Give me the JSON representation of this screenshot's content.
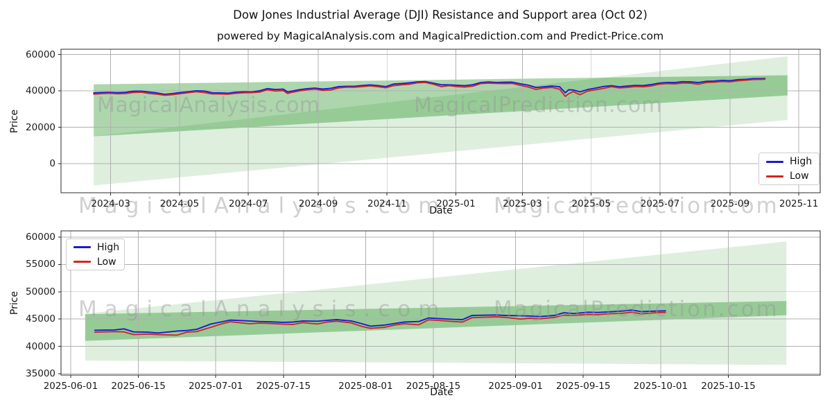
{
  "figure": {
    "title": "Dow Jones Industrial Average (DJI) Resistance and Support area (Oct 02)",
    "subtitle": "powered by MagicalAnalysis.com and MagicalPrediction.com and Predict-Price.com",
    "watermark_left": "MagicalAnalysis.com",
    "watermark_right": "MagicalPrediction.com"
  },
  "colors": {
    "high": "#1a1ad8",
    "low": "#d42424",
    "band": "#008000",
    "grid": "#b0b0b0",
    "spine": "#2a2a2a",
    "text": "#1a1a1a"
  },
  "chart_data": [
    {
      "type": "line",
      "name": "overview",
      "xlabel": "Date",
      "ylabel": "Price",
      "grid": true,
      "xlim": [
        "2024-01-17",
        "2025-11-20"
      ],
      "ylim": [
        -16000,
        62900
      ],
      "yticks": [
        0,
        20000,
        40000,
        60000
      ],
      "ytick_labels": [
        "0",
        "20000",
        "40000",
        "60000"
      ],
      "xticks": [
        "2024-03-01",
        "2024-05-01",
        "2024-07-01",
        "2024-09-01",
        "2024-11-01",
        "2025-01-01",
        "2025-03-01",
        "2025-05-01",
        "2025-07-01",
        "2025-09-01",
        "2025-11-01"
      ],
      "xtick_labels": [
        "2024-03",
        "2024-05",
        "2024-07",
        "2024-09",
        "2024-11",
        "2025-01",
        "2025-03",
        "2025-05",
        "2025-07",
        "2025-09",
        "2025-11"
      ],
      "legend": {
        "position": "lower right",
        "entries": [
          {
            "label": "High"
          },
          {
            "label": "Low"
          }
        ]
      },
      "bands": [
        {
          "name": "support-area-outer",
          "start": "2024-02-15",
          "start_range": [
            -12000,
            15000
          ],
          "end": "2025-10-22",
          "end_range": [
            24000,
            59000
          ],
          "opacity": 0.13
        },
        {
          "name": "resistance-area-inner",
          "start": "2024-02-15",
          "start_range": [
            15000,
            43600
          ],
          "end": "2025-10-22",
          "end_range": [
            37500,
            48600
          ],
          "opacity": 0.32
        }
      ],
      "dates": [
        "2024-02-15",
        "2024-02-22",
        "2024-02-29",
        "2024-03-07",
        "2024-03-14",
        "2024-03-21",
        "2024-03-28",
        "2024-04-04",
        "2024-04-11",
        "2024-04-18",
        "2024-04-25",
        "2024-05-02",
        "2024-05-09",
        "2024-05-16",
        "2024-05-23",
        "2024-05-30",
        "2024-06-06",
        "2024-06-13",
        "2024-06-20",
        "2024-06-27",
        "2024-07-04",
        "2024-07-11",
        "2024-07-18",
        "2024-07-25",
        "2024-08-01",
        "2024-08-05",
        "2024-08-08",
        "2024-08-15",
        "2024-08-22",
        "2024-08-29",
        "2024-09-05",
        "2024-09-12",
        "2024-09-19",
        "2024-09-26",
        "2024-10-03",
        "2024-10-10",
        "2024-10-17",
        "2024-10-24",
        "2024-10-31",
        "2024-11-07",
        "2024-11-14",
        "2024-11-21",
        "2024-11-28",
        "2024-12-05",
        "2024-12-12",
        "2024-12-19",
        "2024-12-26",
        "2025-01-02",
        "2025-01-09",
        "2025-01-16",
        "2025-01-23",
        "2025-01-30",
        "2025-02-06",
        "2025-02-13",
        "2025-02-20",
        "2025-02-27",
        "2025-03-06",
        "2025-03-13",
        "2025-03-20",
        "2025-03-27",
        "2025-04-03",
        "2025-04-08",
        "2025-04-11",
        "2025-04-15",
        "2025-04-21",
        "2025-04-28",
        "2025-05-05",
        "2025-05-12",
        "2025-05-19",
        "2025-05-26",
        "2025-06-02",
        "2025-06-09",
        "2025-06-16",
        "2025-06-23",
        "2025-06-30",
        "2025-07-07",
        "2025-07-14",
        "2025-07-21",
        "2025-07-28",
        "2025-08-04",
        "2025-08-11",
        "2025-08-18",
        "2025-08-25",
        "2025-09-01",
        "2025-09-08",
        "2025-09-15",
        "2025-09-22",
        "2025-09-29",
        "2025-10-02"
      ],
      "series": [
        {
          "name": "High",
          "values": [
            38900,
            39100,
            39200,
            39000,
            39200,
            39800,
            39850,
            39400,
            38900,
            38100,
            38550,
            39100,
            39550,
            40050,
            39900,
            38950,
            38900,
            38750,
            39250,
            39450,
            39400,
            40050,
            41250,
            40750,
            40950,
            39400,
            39750,
            40650,
            41200,
            41500,
            41000,
            41400,
            42350,
            42500,
            42550,
            42950,
            43300,
            42900,
            42350,
            43750,
            44050,
            44450,
            44950,
            45100,
            44250,
            43350,
            43350,
            43100,
            42850,
            43400,
            44550,
            44900,
            44650,
            44750,
            44800,
            43900,
            43150,
            41850,
            42250,
            42650,
            42250,
            38950,
            40650,
            40500,
            39450,
            40750,
            41550,
            42450,
            42850,
            42250,
            42650,
            43000,
            42900,
            43450,
            44250,
            44650,
            44550,
            45050,
            44950,
            44550,
            45250,
            45350,
            45750,
            45550,
            46150,
            46350,
            46750,
            46700,
            46800
          ]
        },
        {
          "name": "Low",
          "values": [
            38200,
            38500,
            38650,
            38400,
            38550,
            39100,
            39300,
            38600,
            38200,
            37600,
            37950,
            38450,
            39000,
            39550,
            39050,
            38350,
            38300,
            38150,
            38650,
            38950,
            39000,
            39350,
            40600,
            39900,
            40150,
            38550,
            39100,
            39950,
            40600,
            41000,
            40250,
            40500,
            41650,
            42000,
            42000,
            42350,
            42750,
            42300,
            41750,
            42900,
            43350,
            43650,
            44450,
            44650,
            43650,
            42300,
            42900,
            42350,
            42100,
            42600,
            44000,
            44250,
            44100,
            44050,
            44100,
            43050,
            42150,
            40800,
            41550,
            41950,
            40900,
            37000,
            38400,
            39600,
            37900,
            39900,
            40650,
            41350,
            42300,
            41650,
            41950,
            42400,
            42250,
            42650,
            43650,
            44050,
            43850,
            44350,
            44250,
            43650,
            44550,
            44750,
            45150,
            44950,
            45550,
            45850,
            46250,
            46300,
            46450
          ]
        }
      ]
    },
    {
      "type": "line",
      "name": "recent-detail",
      "xlabel": "Date",
      "ylabel": "Price",
      "grid": true,
      "xlim": [
        "2025-05-30",
        "2025-11-03"
      ],
      "ylim": [
        34740,
        61140
      ],
      "yticks": [
        35000,
        40000,
        45000,
        50000,
        55000,
        60000
      ],
      "ytick_labels": [
        "35000",
        "40000",
        "45000",
        "50000",
        "55000",
        "60000"
      ],
      "xticks": [
        "2025-06-01",
        "2025-06-15",
        "2025-07-01",
        "2025-07-15",
        "2025-08-01",
        "2025-08-15",
        "2025-09-01",
        "2025-09-15",
        "2025-10-01",
        "2025-10-15"
      ],
      "xtick_labels": [
        "2025-06-01",
        "2025-06-15",
        "2025-07-01",
        "2025-07-15",
        "2025-08-01",
        "2025-08-15",
        "2025-09-01",
        "2025-09-15",
        "2025-10-01",
        "2025-10-15"
      ],
      "legend": {
        "position": "upper left",
        "entries": [
          {
            "label": "High"
          },
          {
            "label": "Low"
          }
        ]
      },
      "bands": [
        {
          "name": "support-area-outer",
          "start": "2025-06-04",
          "start_range": [
            37400,
            46000
          ],
          "end": "2025-10-27",
          "end_range": [
            36600,
            59200
          ],
          "opacity": 0.13
        },
        {
          "name": "resistance-area-inner",
          "start": "2025-06-04",
          "start_range": [
            41000,
            45900
          ],
          "end": "2025-10-27",
          "end_range": [
            45700,
            48300
          ],
          "opacity": 0.32
        }
      ],
      "dates": [
        "2025-06-06",
        "2025-06-10",
        "2025-06-12",
        "2025-06-14",
        "2025-06-17",
        "2025-06-19",
        "2025-06-23",
        "2025-06-25",
        "2025-06-27",
        "2025-06-30",
        "2025-07-02",
        "2025-07-04",
        "2025-07-08",
        "2025-07-10",
        "2025-07-12",
        "2025-07-15",
        "2025-07-17",
        "2025-07-19",
        "2025-07-22",
        "2025-07-24",
        "2025-07-26",
        "2025-07-29",
        "2025-07-31",
        "2025-08-02",
        "2025-08-05",
        "2025-08-07",
        "2025-08-09",
        "2025-08-12",
        "2025-08-14",
        "2025-08-16",
        "2025-08-19",
        "2025-08-21",
        "2025-08-23",
        "2025-08-26",
        "2025-08-28",
        "2025-08-30",
        "2025-09-02",
        "2025-09-04",
        "2025-09-06",
        "2025-09-09",
        "2025-09-11",
        "2025-09-13",
        "2025-09-16",
        "2025-09-18",
        "2025-09-20",
        "2025-09-23",
        "2025-09-25",
        "2025-09-27",
        "2025-09-30",
        "2025-10-02"
      ],
      "series": [
        {
          "name": "High",
          "values": [
            42950,
            43000,
            43200,
            42650,
            42600,
            42450,
            42800,
            42900,
            43100,
            44100,
            44450,
            44800,
            44650,
            44550,
            44500,
            44400,
            44450,
            44650,
            44600,
            44750,
            44900,
            44650,
            44200,
            43700,
            43900,
            44200,
            44450,
            44550,
            45200,
            45100,
            44950,
            44900,
            45650,
            45700,
            45750,
            45650,
            45600,
            45550,
            45450,
            45650,
            46150,
            46000,
            46250,
            46200,
            46300,
            46450,
            46650,
            46350,
            46450,
            46500
          ]
        },
        {
          "name": "Low",
          "values": [
            42600,
            42700,
            42650,
            42150,
            42250,
            42150,
            42050,
            42600,
            42700,
            43500,
            44050,
            44500,
            44150,
            44250,
            44200,
            44050,
            44000,
            44350,
            44100,
            44450,
            44600,
            44300,
            43700,
            43300,
            43500,
            43900,
            44150,
            43950,
            44850,
            44750,
            44550,
            44450,
            45250,
            45350,
            45400,
            45300,
            45000,
            45150,
            45050,
            45300,
            45700,
            45650,
            45850,
            45800,
            45950,
            46050,
            46250,
            45950,
            46150,
            46200
          ]
        }
      ]
    }
  ]
}
